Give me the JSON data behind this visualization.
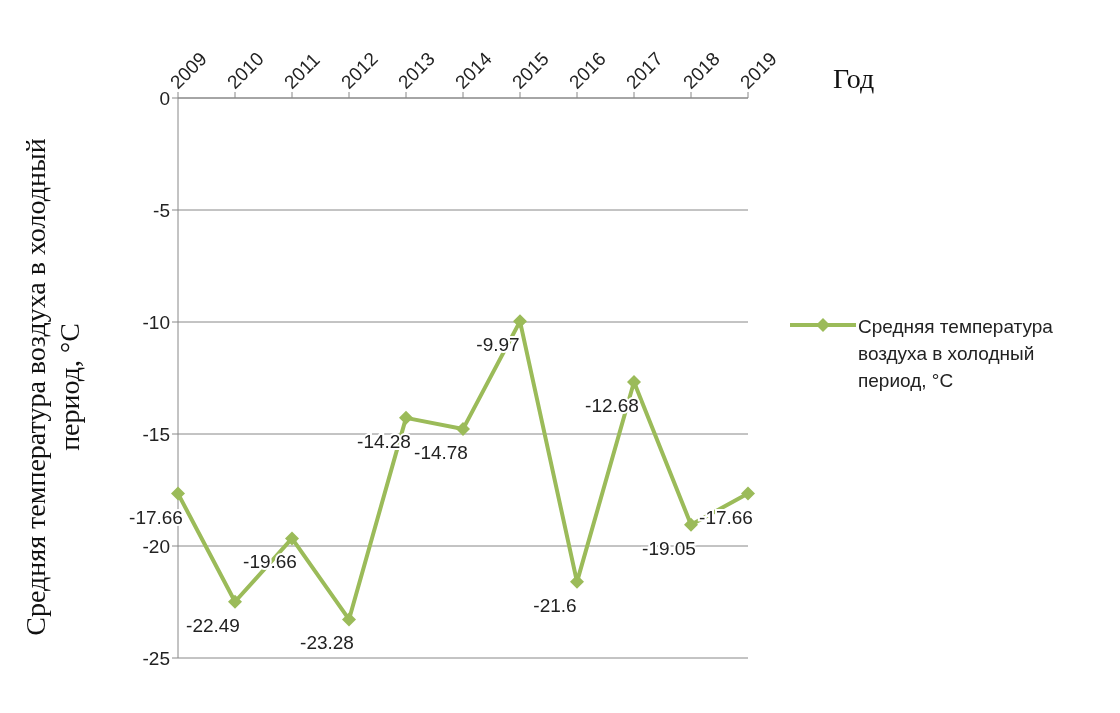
{
  "chart_data": {
    "type": "line",
    "xlabel": "Год",
    "ylabel": "Средняя температура воздуха в холодный период, °С",
    "categories": [
      "2009",
      "2010",
      "2011",
      "2012",
      "2013",
      "2014",
      "2015",
      "2016",
      "2017",
      "2018",
      "2019"
    ],
    "series": [
      {
        "name": "Средняя температура воздуха в холодный период, °С",
        "color": "#9bbb59",
        "values": [
          -17.66,
          -22.49,
          -19.66,
          -23.28,
          -14.28,
          -14.78,
          -9.97,
          -21.6,
          -12.68,
          -19.05,
          -17.66
        ]
      }
    ],
    "ylim": [
      -25,
      0
    ],
    "yticks": [
      0,
      -5,
      -10,
      -15,
      -20,
      -25
    ],
    "grid": "y",
    "legend": "right",
    "marker": "diamond",
    "line_style": "solid",
    "data_labels": true
  }
}
